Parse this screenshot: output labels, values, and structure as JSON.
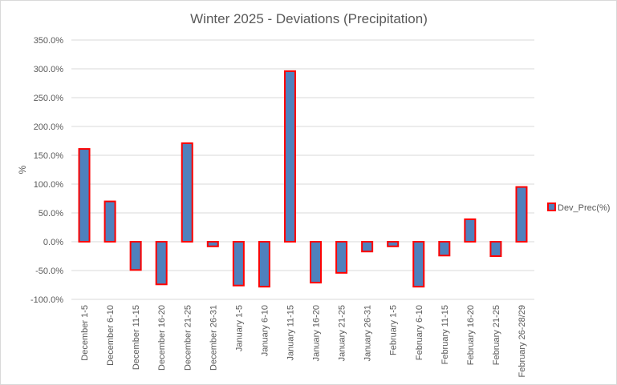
{
  "chart_data": {
    "type": "bar",
    "title": "Winter 2025 - Deviations (Precipitation)",
    "xlabel": "",
    "ylabel": "%",
    "ylim": [
      -100,
      350
    ],
    "ytick_values": [
      -100,
      -50,
      0,
      50,
      100,
      150,
      200,
      250,
      300,
      350
    ],
    "ytick_labels": [
      "-100.0%",
      "-50.0%",
      "0.0%",
      "50.0%",
      "100.0%",
      "150.0%",
      "200.0%",
      "250.0%",
      "300.0%",
      "350.0%"
    ],
    "grid": true,
    "legend_position": "right",
    "categories": [
      "December 1-5",
      "December 6-10",
      "December 11-15",
      "December 16-20",
      "December 21-25",
      "December 26-31",
      "January 1-5",
      "January 6-10",
      "January 11-15",
      "January 16-20",
      "January 21-25",
      "January 26-31",
      "February 1-5",
      "February 6-10",
      "February 11-15",
      "February 16-20",
      "February 21-25",
      "February 26-28/29"
    ],
    "series": [
      {
        "name": "Dev_Prec(%)",
        "fill": "#4f81bd",
        "stroke": "#ff0000",
        "values": [
          161,
          70,
          -49,
          -74,
          171,
          -8,
          -76,
          -78,
          296,
          -71,
          -54,
          -17,
          -8,
          -78,
          -24,
          39,
          -25,
          95
        ]
      }
    ]
  }
}
